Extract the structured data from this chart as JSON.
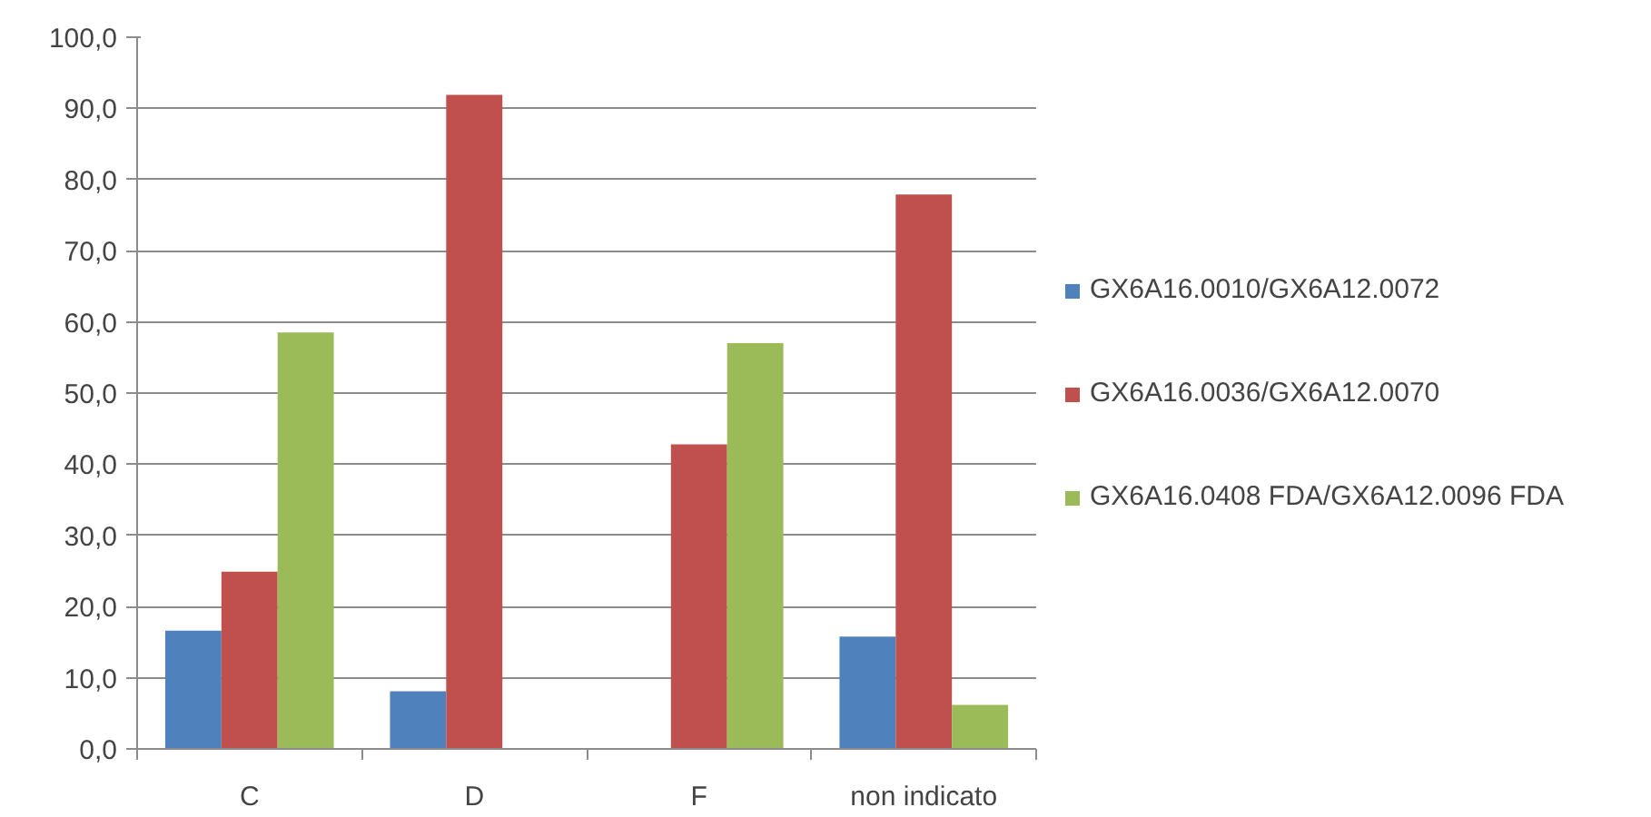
{
  "chart_data": {
    "type": "bar",
    "categories": [
      "C",
      "D",
      "F",
      "non indicato"
    ],
    "series": [
      {
        "name": "GX6A16.0010/GX6A12.0072",
        "color": "#4f81bd",
        "values": [
          16.6,
          8.1,
          0,
          15.8
        ]
      },
      {
        "name": "GX6A16.0036/GX6A12.0070",
        "color": "#c0504d",
        "values": [
          24.9,
          91.9,
          42.8,
          77.9
        ]
      },
      {
        "name": "GX6A16.0408 FDA/GX6A12.0096 FDA",
        "color": "#9bbb59",
        "values": [
          58.5,
          0,
          57.0,
          6.2
        ]
      }
    ],
    "ylim": [
      0,
      100
    ],
    "yticks": [
      {
        "value": 0,
        "label": "0,0"
      },
      {
        "value": 10,
        "label": "10,0"
      },
      {
        "value": 20,
        "label": "20,0"
      },
      {
        "value": 30,
        "label": "30,0"
      },
      {
        "value": 40,
        "label": "40,0"
      },
      {
        "value": 50,
        "label": "50,0"
      },
      {
        "value": 60,
        "label": "60,0"
      },
      {
        "value": 70,
        "label": "70,0"
      },
      {
        "value": 80,
        "label": "80,0"
      },
      {
        "value": 90,
        "label": "90,0"
      },
      {
        "value": 100,
        "label": "100,0"
      }
    ],
    "grid": "y",
    "legend": "right"
  }
}
